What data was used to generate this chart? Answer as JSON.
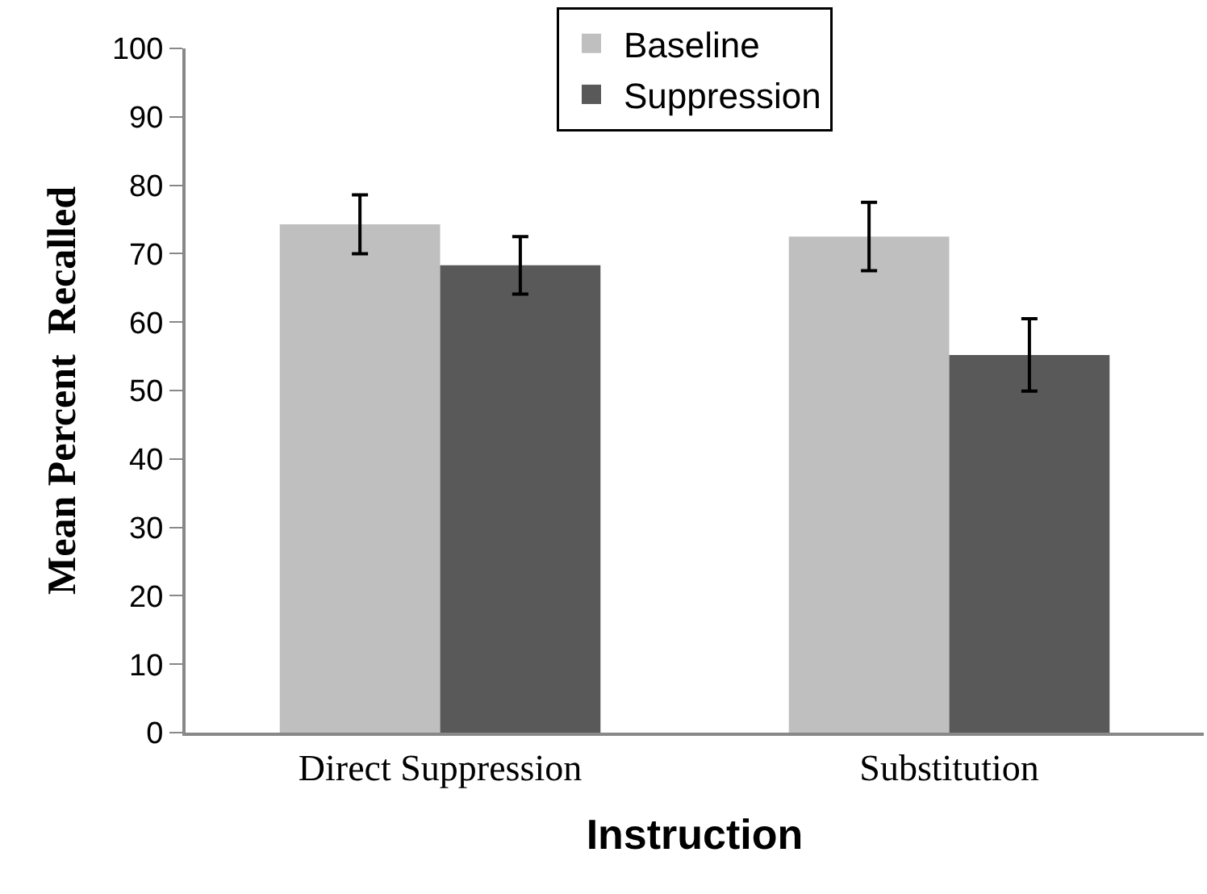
{
  "chart_data": {
    "type": "bar",
    "xlabel": "Instruction",
    "ylabel": "Mean Percent  Recalled",
    "categories": [
      "Direct Suppression",
      "Substitution"
    ],
    "series": [
      {
        "name": "Baseline",
        "color": "#bfbfbf",
        "values": [
          74.3,
          72.5
        ],
        "errors": [
          4.3,
          5
        ]
      },
      {
        "name": "Suppression",
        "color": "#595959",
        "values": [
          68.3,
          55.2
        ],
        "errors": [
          4.2,
          5.3
        ]
      }
    ],
    "ylim": [
      0,
      100
    ],
    "yticks": [
      0,
      10,
      20,
      30,
      40,
      50,
      60,
      70,
      80,
      90,
      100
    ],
    "grid": false,
    "legend": "top"
  }
}
